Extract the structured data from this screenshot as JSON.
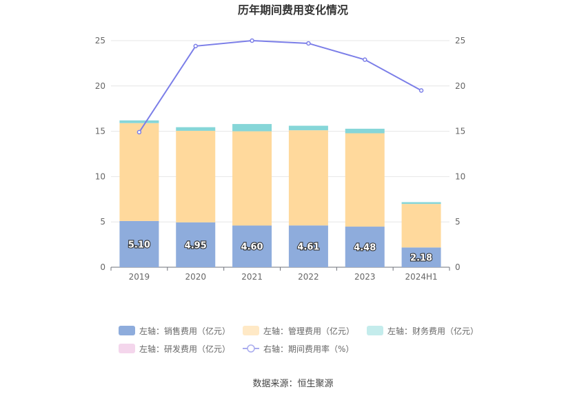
{
  "chart_data": {
    "type": "bar",
    "title": "历年期间费用变化情况",
    "categories": [
      "2019",
      "2020",
      "2021",
      "2022",
      "2023",
      "2024H1"
    ],
    "stacked": true,
    "y_left": {
      "min": 0,
      "max": 25,
      "ticks": [
        0,
        5,
        10,
        15,
        20,
        25
      ]
    },
    "y_right": {
      "min": 0,
      "max": 25,
      "ticks": [
        0,
        5,
        10,
        15,
        20,
        25
      ]
    },
    "series": [
      {
        "name": "左轴：销售费用（亿元）",
        "axis": "left",
        "kind": "bar",
        "color": "#8eacdc",
        "values": [
          5.1,
          4.95,
          4.6,
          4.61,
          4.48,
          2.18
        ],
        "labels": [
          "5.10",
          "4.95",
          "4.60",
          "4.61",
          "4.48",
          "2.18"
        ]
      },
      {
        "name": "左轴：管理费用（亿元）",
        "axis": "left",
        "kind": "bar",
        "color": "#ffd99c",
        "values": [
          10.8,
          10.1,
          10.4,
          10.5,
          10.3,
          4.8
        ]
      },
      {
        "name": "左轴：财务费用（亿元）",
        "axis": "left",
        "kind": "bar",
        "color": "#86d6d8",
        "values": [
          0.3,
          0.4,
          0.8,
          0.5,
          0.5,
          0.2
        ]
      },
      {
        "name": "左轴：研发费用（亿元）",
        "axis": "left",
        "kind": "bar",
        "color": "#f4d6ec",
        "values": [
          0,
          0,
          0,
          0,
          0,
          0
        ]
      },
      {
        "name": "右轴：期间费用率（%）",
        "axis": "right",
        "kind": "line",
        "color": "#7b7ee8",
        "values": [
          14.9,
          24.4,
          25.0,
          24.7,
          22.9,
          19.5
        ]
      }
    ],
    "legend_position": "bottom",
    "grid": true
  },
  "source": "数据来源：恒生聚源"
}
